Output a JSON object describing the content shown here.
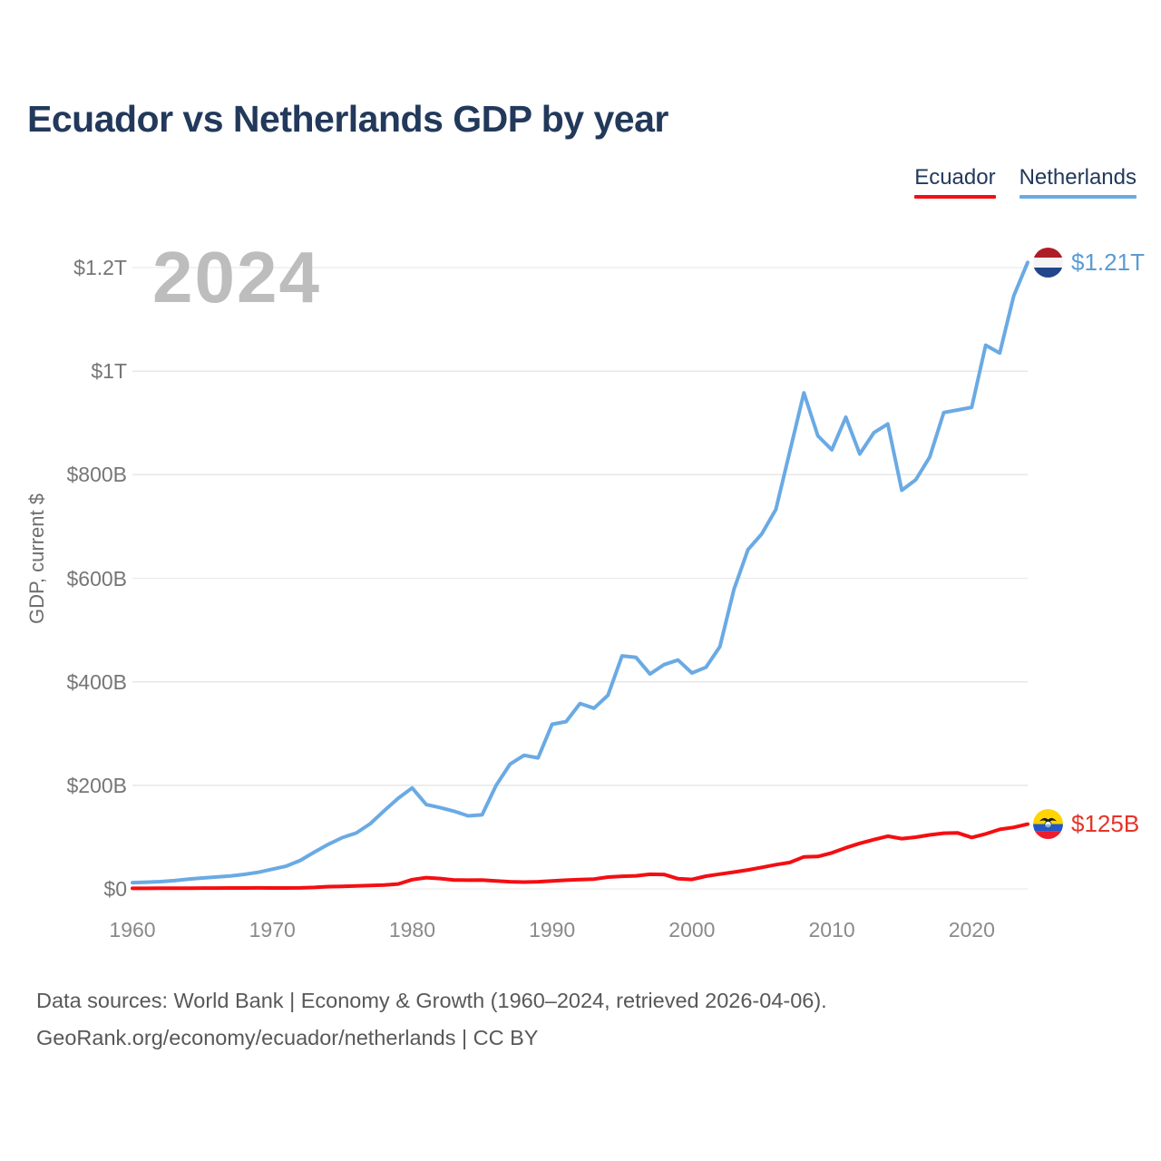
{
  "title": "Ecuador vs Netherlands GDP by year",
  "watermark": "2024",
  "legend": [
    {
      "label": "Ecuador",
      "color": "#f40e12"
    },
    {
      "label": "Netherlands",
      "color": "#6aaae4"
    }
  ],
  "theme": {
    "title_color": "#22395b",
    "grid_color": "#e7e7e7",
    "tick_color": "#767676",
    "watermark_color": "#bdbdbd",
    "background": "#ffffff"
  },
  "chart_data": {
    "type": "line",
    "title": "Ecuador vs Netherlands GDP by year",
    "xlabel": "",
    "ylabel": "GDP, current $",
    "units": "billion US$ (current)",
    "grid": true,
    "legend_position": "top-right",
    "xlim": [
      1960,
      2024
    ],
    "ylim": [
      0,
      1280
    ],
    "yticks": [
      {
        "value": 0,
        "label": "$0"
      },
      {
        "value": 200,
        "label": "$200B"
      },
      {
        "value": 400,
        "label": "$400B"
      },
      {
        "value": 600,
        "label": "$600B"
      },
      {
        "value": 800,
        "label": "$800B"
      },
      {
        "value": 1000,
        "label": "$1T"
      },
      {
        "value": 1200,
        "label": "$1.2T"
      }
    ],
    "xticks": [
      {
        "value": 1960,
        "label": "1960"
      },
      {
        "value": 1970,
        "label": "1970"
      },
      {
        "value": 1980,
        "label": "1980"
      },
      {
        "value": 1990,
        "label": "1990"
      },
      {
        "value": 2000,
        "label": "2000"
      },
      {
        "value": 2010,
        "label": "2010"
      },
      {
        "value": 2020,
        "label": "2020"
      }
    ],
    "x": [
      1960,
      1961,
      1962,
      1963,
      1964,
      1965,
      1966,
      1967,
      1968,
      1969,
      1970,
      1971,
      1972,
      1973,
      1974,
      1975,
      1976,
      1977,
      1978,
      1979,
      1980,
      1981,
      1982,
      1983,
      1984,
      1985,
      1986,
      1987,
      1988,
      1989,
      1990,
      1991,
      1992,
      1993,
      1994,
      1995,
      1996,
      1997,
      1998,
      1999,
      2000,
      2001,
      2002,
      2003,
      2004,
      2005,
      2006,
      2007,
      2008,
      2009,
      2010,
      2011,
      2012,
      2013,
      2014,
      2015,
      2016,
      2017,
      2018,
      2019,
      2020,
      2021,
      2022,
      2023,
      2024
    ],
    "series": [
      {
        "name": "Ecuador",
        "color": "#f40e12",
        "label_color": "#e63329",
        "end_label": "$125B",
        "flag": "ecuador",
        "values": [
          1.0,
          1.1,
          1.2,
          1.3,
          1.4,
          1.5,
          1.6,
          1.7,
          1.8,
          1.9,
          1.7,
          1.8,
          2.0,
          2.8,
          4.3,
          4.9,
          5.7,
          6.6,
          7.6,
          9.4,
          17.9,
          21.8,
          19.9,
          17.1,
          16.8,
          17.1,
          15.3,
          13.9,
          13.1,
          13.9,
          15.2,
          16.9,
          18.1,
          19.0,
          22.7,
          24.4,
          25.2,
          28.2,
          27.9,
          19.6,
          18.3,
          24.5,
          28.5,
          32.4,
          36.6,
          41.5,
          46.8,
          51.0,
          61.8,
          62.5,
          69.6,
          79.3,
          87.9,
          95.1,
          101.7,
          97.0,
          99.9,
          104.3,
          107.6,
          108.1,
          99.3,
          106.2,
          115.0,
          118.8,
          125.0
        ]
      },
      {
        "name": "Netherlands",
        "color": "#6aaae4",
        "label_color": "#5b9bd5",
        "end_label": "$1.21T",
        "flag": "netherlands",
        "values": [
          12,
          13,
          14,
          16,
          19,
          21,
          23,
          25,
          28,
          32,
          38,
          44,
          55,
          71,
          86,
          99,
          108,
          126,
          151,
          175,
          195,
          163,
          157,
          150,
          141,
          143,
          200,
          241,
          258,
          253,
          318,
          323,
          358,
          349,
          374,
          450,
          447,
          415,
          433,
          442,
          417,
          428,
          468,
          578,
          655,
          686,
          733,
          845,
          958,
          875,
          848,
          911,
          840,
          881,
          898,
          770,
          790,
          834,
          920,
          925,
          930,
          1050,
          1035,
          1145,
          1210
        ]
      }
    ]
  },
  "footer": {
    "line1": "Data sources: World Bank | Economy & Growth (1960–2024, retrieved 2026-04-06).",
    "line2": "GeoRank.org/economy/ecuador/netherlands | CC BY"
  }
}
